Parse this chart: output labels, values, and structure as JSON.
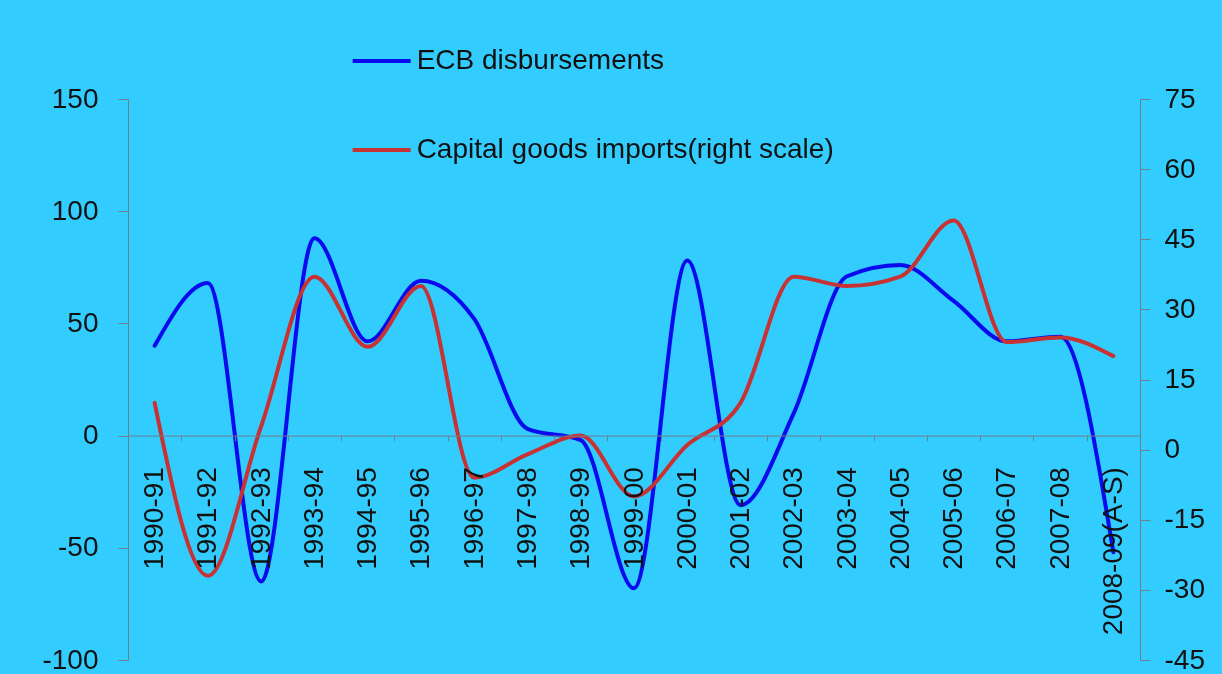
{
  "chart_data": {
    "type": "line",
    "categories": [
      "1990-91",
      "1991-92",
      "1992-93",
      "1993-94",
      "1994-95",
      "1995-96",
      "1996-97",
      "1997-98",
      "1998-99",
      "1999-00",
      "2000-01",
      "2001-02",
      "2002-03",
      "2003-04",
      "2004-05",
      "2005-06",
      "2006-07",
      "2007-08",
      "2008-09(A-S)"
    ],
    "series": [
      {
        "name": "ECB disbursements",
        "color": "#0a0aee",
        "values": [
          40,
          68,
          -65,
          88,
          42,
          69,
          52,
          3,
          -2,
          -68,
          78,
          -31,
          10,
          71,
          76,
          60,
          42,
          44,
          -52
        ]
      },
      {
        "name": "Capital goods imports(right scale)",
        "color": "#c83232",
        "axis": "y2",
        "values": [
          10,
          -27,
          5,
          37,
          22,
          35,
          -6,
          -1,
          3,
          -10,
          1,
          10,
          37,
          35,
          37,
          49,
          23,
          24,
          20
        ]
      }
    ],
    "ylim": [
      -100,
      150
    ],
    "yticks": [
      -100,
      -50,
      0,
      50,
      100,
      150
    ],
    "y2lim": [
      -45,
      75
    ],
    "y2ticks": [
      -45,
      -30,
      -15,
      0,
      15,
      30,
      45,
      60,
      75
    ],
    "grid": false,
    "legend": "top",
    "marker": "none",
    "line_style": "solid"
  }
}
